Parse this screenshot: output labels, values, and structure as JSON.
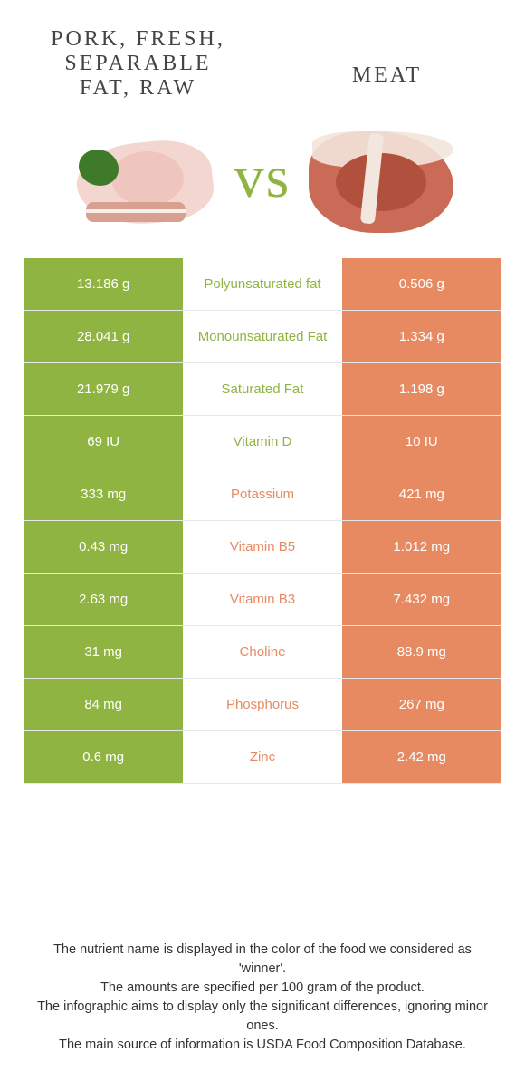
{
  "titles": {
    "left": "Pork, fresh, separable fat, raw",
    "right": "Meat"
  },
  "vs": "vs",
  "colors": {
    "green": "#8fb441",
    "orange": "#e78a62",
    "bg": "#ffffff",
    "border": "#e8e8e8"
  },
  "rows": [
    {
      "left": "13.186 g",
      "label": "Polyunsaturated fat",
      "right": "0.506 g",
      "winner": "left"
    },
    {
      "left": "28.041 g",
      "label": "Monounsaturated Fat",
      "right": "1.334 g",
      "winner": "left"
    },
    {
      "left": "21.979 g",
      "label": "Saturated Fat",
      "right": "1.198 g",
      "winner": "left"
    },
    {
      "left": "69 IU",
      "label": "Vitamin D",
      "right": "10 IU",
      "winner": "left"
    },
    {
      "left": "333 mg",
      "label": "Potassium",
      "right": "421 mg",
      "winner": "right"
    },
    {
      "left": "0.43 mg",
      "label": "Vitamin B5",
      "right": "1.012 mg",
      "winner": "right"
    },
    {
      "left": "2.63 mg",
      "label": "Vitamin B3",
      "right": "7.432 mg",
      "winner": "right"
    },
    {
      "left": "31 mg",
      "label": "Choline",
      "right": "88.9 mg",
      "winner": "right"
    },
    {
      "left": "84 mg",
      "label": "Phosphorus",
      "right": "267 mg",
      "winner": "right"
    },
    {
      "left": "0.6 mg",
      "label": "Zinc",
      "right": "2.42 mg",
      "winner": "right"
    }
  ],
  "footer": [
    "The nutrient name is displayed in the color of the food we considered as 'winner'.",
    "The amounts are specified per 100 gram of the product.",
    "The infographic aims to display only the significant differences, ignoring minor ones.",
    "The main source of information is USDA Food Composition Database."
  ]
}
